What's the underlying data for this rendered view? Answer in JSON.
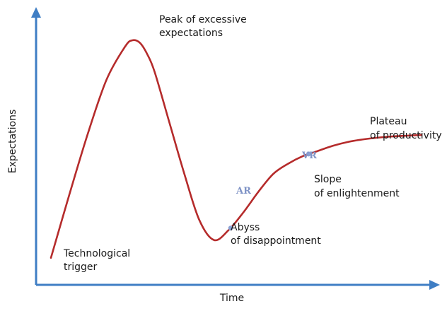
{
  "chart_data": {
    "type": "line",
    "title": "",
    "xlabel": "Time",
    "ylabel": "Expectations",
    "grid": false,
    "series": [
      {
        "x": [
          0,
          5,
          10,
          15,
          20,
          22,
          24,
          26,
          28,
          32,
          36,
          40,
          44,
          48,
          52,
          56,
          60,
          64,
          68,
          72,
          76,
          80,
          84,
          88,
          92,
          96,
          100
        ],
        "y": [
          7,
          32,
          56,
          77,
          90,
          92.5,
          91.5,
          87,
          80,
          60,
          40,
          22,
          14,
          18,
          25,
          33,
          40,
          44,
          47,
          49,
          51,
          52.5,
          53.5,
          54.2,
          54.7,
          55,
          55.3
        ]
      }
    ],
    "annotations": [
      {
        "lines": [
          "Peak of excessive",
          "expectations"
        ]
      },
      {
        "lines": [
          "Technological",
          "trigger"
        ]
      },
      {
        "lines": [
          "Abyss",
          "of disappointment"
        ]
      },
      {
        "lines": [
          "Slope",
          "of enlightenment"
        ]
      },
      {
        "lines": [
          "Plateau",
          "of productivity"
        ]
      }
    ],
    "markers": [
      {
        "label": "AR",
        "x": 48.5,
        "y": 18.7
      },
      {
        "label": "VR",
        "x": 69.5,
        "y": 47.8
      }
    ]
  }
}
